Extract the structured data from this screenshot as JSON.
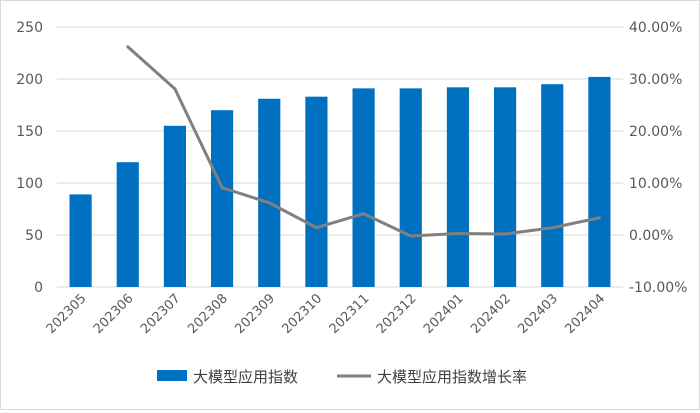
{
  "chart_data": {
    "type": "bar",
    "categories": [
      "202305",
      "202306",
      "202307",
      "202308",
      "202309",
      "202310",
      "202311",
      "202312",
      "202401",
      "202402",
      "202403",
      "202404"
    ],
    "series": [
      {
        "name": "大模型应用指数",
        "type": "bar",
        "axis": "left",
        "color": "#0070c0",
        "values": [
          89,
          120,
          155,
          170,
          181,
          183,
          191,
          191,
          192,
          192,
          195,
          202
        ]
      },
      {
        "name": "大模型应用指数增长率",
        "type": "line",
        "axis": "right",
        "color": "#808080",
        "values": [
          null,
          36.2,
          28.1,
          9.1,
          6.2,
          1.4,
          4.1,
          -0.2,
          0.3,
          0.2,
          1.4,
          3.3
        ]
      }
    ],
    "ylim_left": [
      0,
      250
    ],
    "yticks_left": [
      "0",
      "50",
      "100",
      "150",
      "200",
      "250"
    ],
    "ylim_right": [
      -10,
      40
    ],
    "yticks_right": [
      "-10.00%",
      "0.00%",
      "10.00%",
      "20.00%",
      "30.00%",
      "40.00%"
    ],
    "grid": "horizontal",
    "legend_position": "bottom",
    "xlabel": "",
    "ylabel": "",
    "title": ""
  }
}
